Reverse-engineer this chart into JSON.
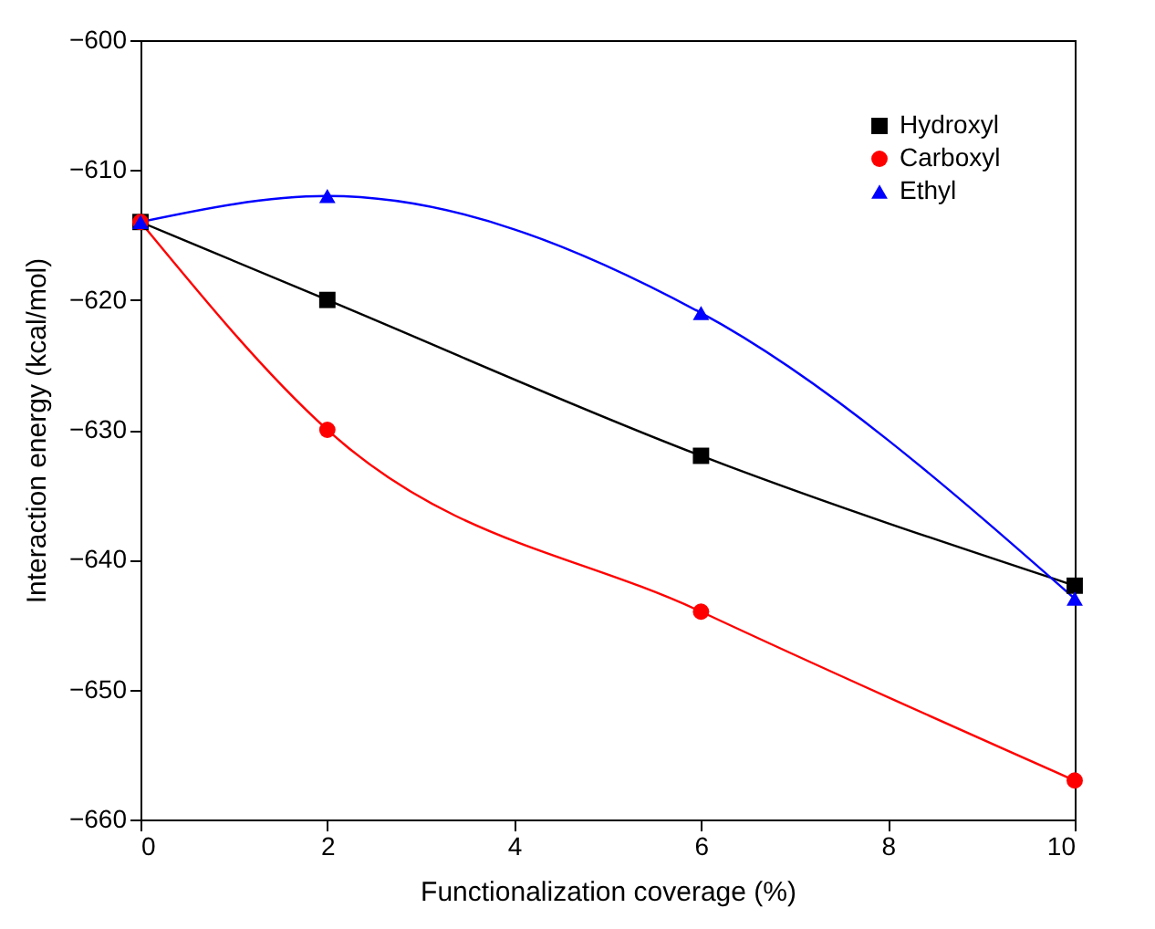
{
  "chart_data": {
    "type": "line",
    "xlabel": "Functionalization coverage (%)",
    "ylabel": "Interaction energy (kcal/mol)",
    "x": [
      0,
      2,
      6,
      10
    ],
    "series": [
      {
        "name": "Hydroxyl",
        "color": "#000000",
        "marker": "square",
        "values": [
          -614,
          -620,
          -632,
          -642
        ]
      },
      {
        "name": "Carboxyl",
        "color": "#ff0000",
        "marker": "circle",
        "values": [
          -614,
          -630,
          -644,
          -657
        ]
      },
      {
        "name": "Ethyl",
        "color": "#0000ff",
        "marker": "triangle",
        "values": [
          -614,
          -612,
          -621,
          -643
        ]
      }
    ],
    "xlim": [
      0,
      10
    ],
    "xticks": [
      0,
      2,
      4,
      6,
      8,
      10
    ],
    "ylim": [
      -660,
      -600
    ],
    "yticks": [
      -660,
      -650,
      -640,
      -630,
      -620,
      -610,
      -600
    ],
    "grid": false,
    "legend": "top right",
    "line_style": "solid"
  }
}
